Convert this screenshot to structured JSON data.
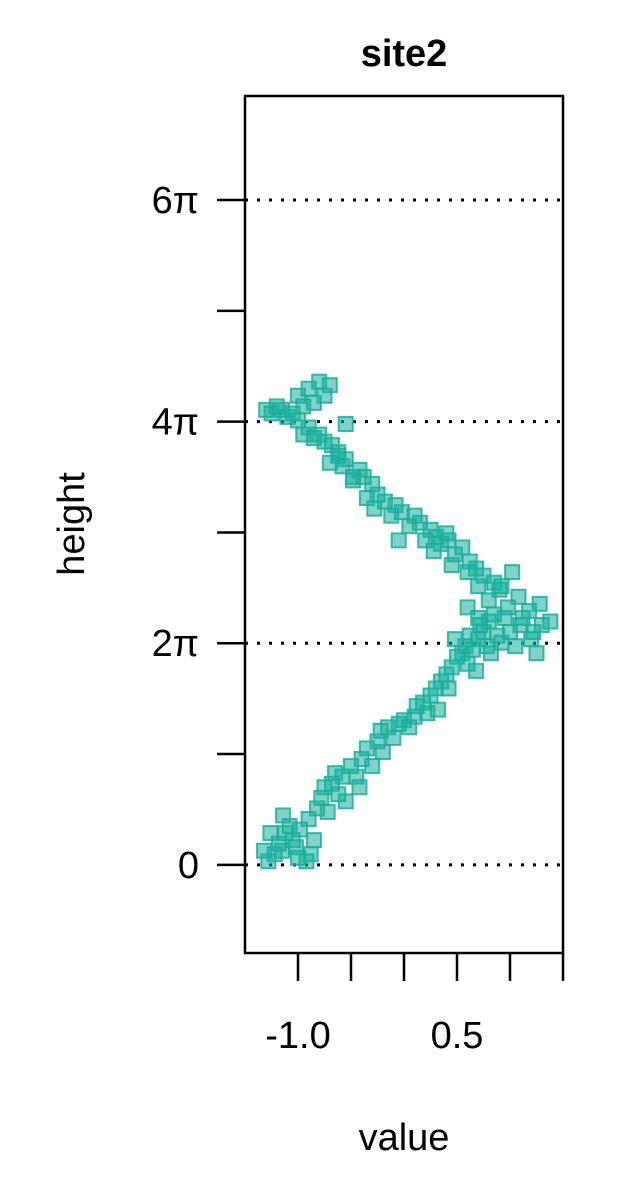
{
  "chart_data": {
    "type": "scatter",
    "title": "site2",
    "xlabel": "value",
    "ylabel": "height",
    "xlim": [
      -1.5,
      1.5
    ],
    "ylim": [
      -2.5,
      21.8
    ],
    "x_ticks": [
      -1.0,
      -0.5,
      0.0,
      0.5,
      1.0,
      1.5
    ],
    "x_tick_labels": [
      {
        "value": -1.0,
        "label": "-1.0"
      },
      {
        "value": 0.5,
        "label": "0.5"
      }
    ],
    "y_ticks": [
      0,
      3.1416,
      6.2832,
      9.4248,
      12.5664,
      15.708,
      18.8496
    ],
    "y_tick_labels": [
      {
        "value": 0,
        "label": "0"
      },
      {
        "value": 6.2832,
        "label": "2π"
      },
      {
        "value": 12.5664,
        "label": "4π"
      },
      {
        "value": 18.8496,
        "label": "6π"
      }
    ],
    "reference_lines_y": [
      0,
      6.2832,
      12.5664,
      18.8496
    ],
    "marker": "square",
    "color": "#1aae9c",
    "series": [
      {
        "points": [
          [
            -1.28,
            0.1
          ],
          [
            -1.22,
            0.3
          ],
          [
            -1.18,
            0.6
          ],
          [
            -1.12,
            0.9
          ],
          [
            -1.15,
            0.4
          ],
          [
            -1.05,
            0.7
          ],
          [
            -1.0,
            0.2
          ],
          [
            -1.08,
            1.1
          ],
          [
            -0.98,
            1.0
          ],
          [
            -0.92,
            0.1
          ],
          [
            -0.88,
            0.3
          ],
          [
            -0.85,
            0.7
          ],
          [
            -0.9,
            1.3
          ],
          [
            -0.82,
            1.6
          ],
          [
            -0.78,
            1.9
          ],
          [
            -0.72,
            1.5
          ],
          [
            -0.75,
            2.2
          ],
          [
            -0.68,
            2.3
          ],
          [
            -0.62,
            2.0
          ],
          [
            -0.65,
            2.6
          ],
          [
            -0.58,
            2.5
          ],
          [
            -0.55,
            1.8
          ],
          [
            -0.5,
            2.8
          ],
          [
            -0.45,
            2.5
          ],
          [
            -0.4,
            3.0
          ],
          [
            -0.42,
            2.2
          ],
          [
            -0.35,
            3.3
          ],
          [
            -0.3,
            2.8
          ],
          [
            -0.25,
            3.5
          ],
          [
            -0.2,
            3.2
          ],
          [
            -0.22,
            3.8
          ],
          [
            -0.15,
            3.9
          ],
          [
            -0.1,
            3.6
          ],
          [
            -0.05,
            4.0
          ],
          [
            0.0,
            4.1
          ],
          [
            0.05,
            3.9
          ],
          [
            0.1,
            4.2
          ],
          [
            0.12,
            4.5
          ],
          [
            0.18,
            4.6
          ],
          [
            0.22,
            4.3
          ],
          [
            0.25,
            4.8
          ],
          [
            0.3,
            5.0
          ],
          [
            0.35,
            5.2
          ],
          [
            0.32,
            4.4
          ],
          [
            0.4,
            5.4
          ],
          [
            0.45,
            5.6
          ],
          [
            0.42,
            5.0
          ],
          [
            0.5,
            5.9
          ],
          [
            0.55,
            6.0
          ],
          [
            0.6,
            5.7
          ],
          [
            0.48,
            6.4
          ],
          [
            0.58,
            6.2
          ],
          [
            0.62,
            6.5
          ],
          [
            0.65,
            6.1
          ],
          [
            0.7,
            6.4
          ],
          [
            0.72,
            6.8
          ],
          [
            0.68,
            5.5
          ],
          [
            0.75,
            6.6
          ],
          [
            0.78,
            6.2
          ],
          [
            0.8,
            6.9
          ],
          [
            0.82,
            6.0
          ],
          [
            0.85,
            7.1
          ],
          [
            0.88,
            6.5
          ],
          [
            0.92,
            6.3
          ],
          [
            0.95,
            7.0
          ],
          [
            1.0,
            6.6
          ],
          [
            1.05,
            6.2
          ],
          [
            1.1,
            6.8
          ],
          [
            1.2,
            6.4
          ],
          [
            1.25,
            6.0
          ],
          [
            1.3,
            6.8
          ],
          [
            1.38,
            6.9
          ],
          [
            1.28,
            7.4
          ],
          [
            1.18,
            7.2
          ],
          [
            1.08,
            7.6
          ],
          [
            0.98,
            7.3
          ],
          [
            0.9,
            7.8
          ],
          [
            0.85,
            8.0
          ],
          [
            0.8,
            7.5
          ],
          [
            0.75,
            8.2
          ],
          [
            0.7,
            7.9
          ],
          [
            0.68,
            8.4
          ],
          [
            0.62,
            8.6
          ],
          [
            0.6,
            8.3
          ],
          [
            0.55,
            9.0
          ],
          [
            0.48,
            8.8
          ],
          [
            0.42,
            9.2
          ],
          [
            0.4,
            9.4
          ],
          [
            0.35,
            9.1
          ],
          [
            0.3,
            9.3
          ],
          [
            0.25,
            9.5
          ],
          [
            0.2,
            9.2
          ],
          [
            0.15,
            9.7
          ],
          [
            0.1,
            9.9
          ],
          [
            0.05,
            9.6
          ],
          [
            -0.02,
            10.0
          ],
          [
            -0.08,
            10.2
          ],
          [
            -0.12,
            9.9
          ],
          [
            -0.18,
            10.3
          ],
          [
            -0.25,
            10.5
          ],
          [
            -0.3,
            10.8
          ],
          [
            -0.35,
            10.4
          ],
          [
            -0.38,
            11.0
          ],
          [
            -0.42,
            11.2
          ],
          [
            -0.48,
            11.0
          ],
          [
            -0.55,
            11.5
          ],
          [
            -0.58,
            11.3
          ],
          [
            -0.62,
            11.7
          ],
          [
            -0.68,
            11.9
          ],
          [
            -0.7,
            11.4
          ],
          [
            -0.75,
            12.0
          ],
          [
            -0.8,
            12.2
          ],
          [
            -0.85,
            12.1
          ],
          [
            -0.9,
            12.4
          ],
          [
            -0.95,
            12.2
          ],
          [
            -1.0,
            12.6
          ],
          [
            -1.05,
            12.8
          ],
          [
            -1.1,
            12.7
          ],
          [
            -1.15,
            12.9
          ],
          [
            -1.2,
            13.0
          ],
          [
            -1.25,
            12.8
          ],
          [
            -1.3,
            12.9
          ],
          [
            -1.0,
            13.3
          ],
          [
            -0.95,
            13.0
          ],
          [
            -0.9,
            13.5
          ],
          [
            -0.85,
            13.1
          ],
          [
            -0.8,
            13.7
          ],
          [
            -0.75,
            13.3
          ],
          [
            -0.7,
            13.6
          ],
          [
            -0.62,
            11.6
          ],
          [
            -0.55,
            12.5
          ],
          [
            -0.48,
            10.9
          ],
          [
            -0.28,
            10.1
          ],
          [
            -0.05,
            9.2
          ],
          [
            0.28,
            8.9
          ],
          [
            0.45,
            8.5
          ],
          [
            0.6,
            7.3
          ],
          [
            0.7,
            7.0
          ],
          [
            0.92,
            7.9
          ],
          [
            1.02,
            8.3
          ],
          [
            1.12,
            7.0
          ],
          [
            1.22,
            6.6
          ],
          [
            -1.32,
            0.4
          ],
          [
            -1.26,
            0.9
          ],
          [
            -1.14,
            1.4
          ],
          [
            -1.02,
            0.5
          ]
        ]
      }
    ]
  }
}
